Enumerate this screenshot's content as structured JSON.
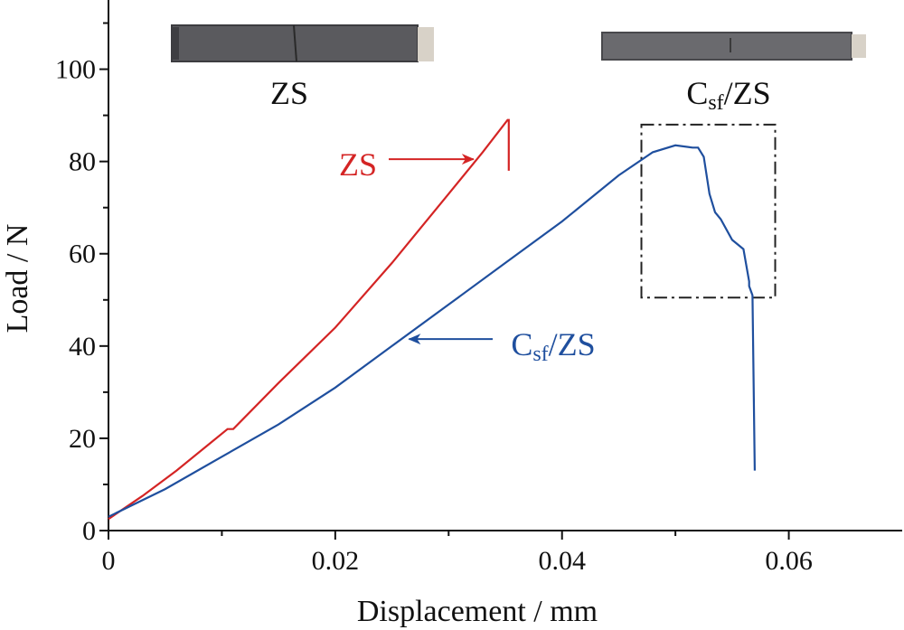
{
  "chart_data": {
    "type": "line",
    "xlabel": "Displacement / mm",
    "ylabel": "Load / N",
    "xlim": [
      0,
      0.07
    ],
    "ylim": [
      0,
      115
    ],
    "x_ticks": [
      0,
      0.02,
      0.04,
      0.06
    ],
    "x_tick_labels": [
      "0",
      "0.02",
      "0.04",
      "0.06"
    ],
    "y_ticks": [
      0,
      20,
      40,
      60,
      80,
      100
    ],
    "y_tick_labels": [
      "0",
      "20",
      "40",
      "60",
      "80",
      "100"
    ],
    "grid": false,
    "series": [
      {
        "name": "ZS",
        "color": "#d42424",
        "x": [
          0,
          0.003,
          0.006,
          0.009,
          0.0105,
          0.011,
          0.015,
          0.02,
          0.025,
          0.03,
          0.033,
          0.0352,
          0.0353,
          0.0353
        ],
        "y": [
          2.5,
          7.5,
          13,
          19,
          22,
          22,
          32,
          44,
          58,
          73,
          82,
          89,
          89,
          78
        ]
      },
      {
        "name": "Csf/ZS",
        "color": "#1f4f9e",
        "x": [
          0,
          0.005,
          0.01,
          0.015,
          0.02,
          0.025,
          0.03,
          0.035,
          0.04,
          0.045,
          0.048,
          0.05,
          0.0515,
          0.052,
          0.0525,
          0.053,
          0.0535,
          0.054,
          0.055,
          0.056,
          0.0565,
          0.0565,
          0.0568,
          0.057
        ],
        "y": [
          3,
          9,
          16,
          23,
          31,
          40,
          49,
          58,
          67,
          77,
          82,
          83.5,
          83,
          83,
          81,
          73,
          69,
          67.5,
          63,
          61,
          54,
          53,
          51,
          13
        ]
      }
    ],
    "annotations": [
      {
        "text": "ZS",
        "color": "#d42424",
        "points_to": [
          0.0322,
          80.5
        ]
      },
      {
        "text_main": "C",
        "text_sub": "sf",
        "text_rest": "/ZS",
        "color": "#1f4f9e",
        "points_to": [
          0.0265,
          41.5
        ]
      }
    ],
    "highlight_box": {
      "x": [
        0.047,
        0.0588
      ],
      "y": [
        50.5,
        88
      ]
    },
    "photo_labels": [
      {
        "text": "ZS"
      },
      {
        "text_main": "C",
        "text_sub": "sf",
        "text_rest": "/ZS"
      }
    ]
  }
}
